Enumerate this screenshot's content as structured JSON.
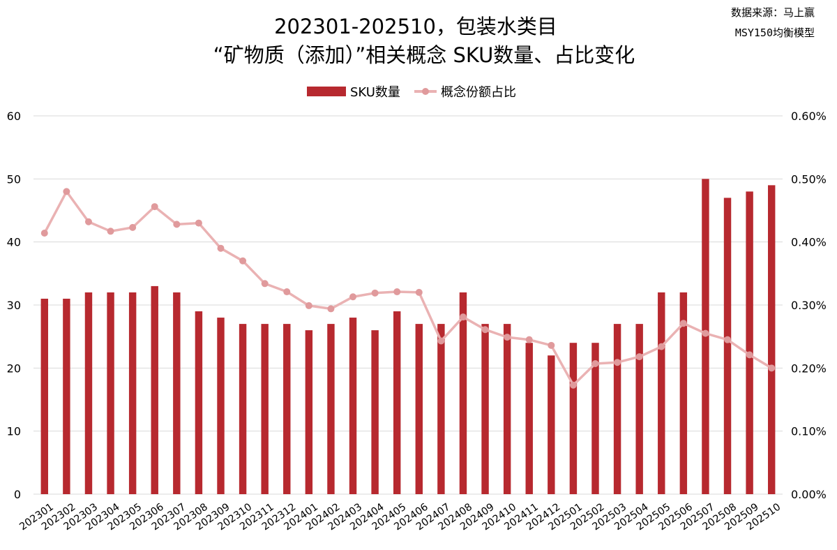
{
  "header": {
    "title_line1": "202301-202510，包装水类目",
    "title_line2": "“矿物质（添加）”相关概念 SKU数量、占比变化",
    "source_line1": "数据来源：马上赢",
    "source_line2": "MSY150均衡模型"
  },
  "colors": {
    "bar": "#b7292f",
    "line": "#eab2b3",
    "marker": "#e09a9c",
    "grid": "#d9d9d9"
  },
  "chart_data": {
    "type": "bar",
    "categories": [
      "202301",
      "202302",
      "202303",
      "202304",
      "202305",
      "202306",
      "202307",
      "202308",
      "202309",
      "202310",
      "202311",
      "202312",
      "202401",
      "202402",
      "202403",
      "202404",
      "202405",
      "202406",
      "202407",
      "202408",
      "202409",
      "202410",
      "202411",
      "202412",
      "202501",
      "202502",
      "202503",
      "202504",
      "202505",
      "202506",
      "202507",
      "202508",
      "202509",
      "202510"
    ],
    "series": [
      {
        "name": "SKU数量",
        "type": "bar",
        "axis": "left",
        "values": [
          31,
          31,
          32,
          32,
          32,
          33,
          32,
          29,
          28,
          27,
          27,
          27,
          26,
          27,
          28,
          26,
          29,
          27,
          27,
          32,
          27,
          27,
          24,
          22,
          24,
          24,
          27,
          27,
          32,
          32,
          50,
          47,
          48,
          49
        ]
      },
      {
        "name": "概念份额占比",
        "type": "line",
        "axis": "right",
        "values": [
          0.414,
          0.48,
          0.432,
          0.417,
          0.423,
          0.456,
          0.428,
          0.43,
          0.39,
          0.37,
          0.334,
          0.321,
          0.299,
          0.294,
          0.313,
          0.319,
          0.321,
          0.32,
          0.243,
          0.281,
          0.261,
          0.249,
          0.245,
          0.236,
          0.173,
          0.207,
          0.209,
          0.218,
          0.234,
          0.271,
          0.255,
          0.245,
          0.221,
          0.2
        ]
      }
    ],
    "y_left": {
      "ylim": [
        0,
        60
      ],
      "ticks": [
        "0",
        "10",
        "20",
        "30",
        "40",
        "50",
        "60"
      ]
    },
    "y_right": {
      "ylim": [
        0,
        0.6
      ],
      "ticks": [
        "0.00%",
        "0.10%",
        "0.20%",
        "0.30%",
        "0.40%",
        "0.50%",
        "0.60%"
      ]
    },
    "grid": true,
    "legend_placement": "top-center"
  }
}
